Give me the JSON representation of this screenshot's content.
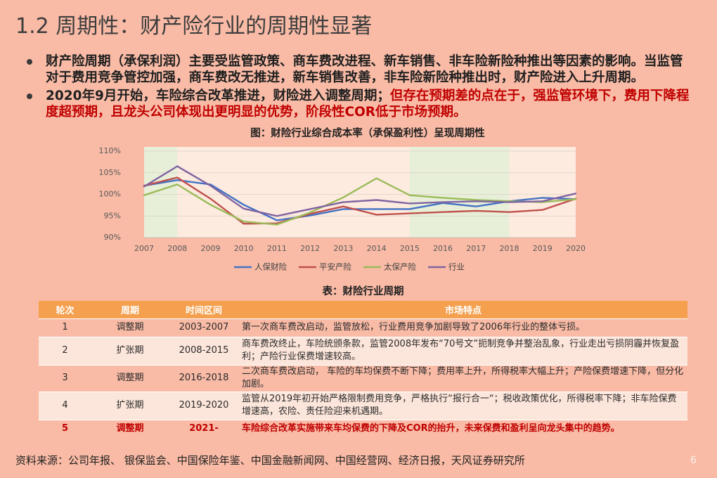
{
  "colors": {
    "page_bg": "#F9BBA6",
    "title_text": "#3D3D3D",
    "accent_red": "#C00000",
    "table_header_bg": "#F4A04E",
    "table_row_light": "#FCE5DA"
  },
  "slide": {
    "title": "1.2 周期性：财产险行业的周期性显著",
    "source": "资料来源：公司年报、 银保监会、中国保险年鉴、中国金融新闻网、中国经营网、经济日报，天风证券研究所",
    "page_number": "6"
  },
  "bullets": [
    {
      "text": "财产险周期（承保利润）主要受监管政策、商车费改进程、新车销售、非车险新险种推出等因素的影响。当监管对于费用竞争管控加强，商车费改无推进，新车销售改善，非车险新险种推出时，财产险进入上升周期。"
    },
    {
      "text": "2020年9月开始，车险综合改革推进，财险进入调整周期；",
      "emphasis_text": "但存在预期差的点在于，强监管环境下，费用下降程度超预期，且龙头公司体现出更明显的优势，阶段性COR低于市场预期。"
    }
  ],
  "chart_data": {
    "type": "line",
    "title": "图：财险行业综合成本率（承保盈利性）呈现周期性",
    "x": [
      "2007",
      "2008",
      "2009",
      "2010",
      "2011",
      "2012",
      "2013",
      "2014",
      "2015",
      "2016",
      "2017",
      "2018",
      "2019",
      "2020"
    ],
    "ylim": [
      90,
      110
    ],
    "yticks": [
      "90%",
      "95%",
      "100%",
      "105%",
      "110%"
    ],
    "grid": true,
    "legend": "bottom",
    "highlight_ranges": [
      [
        "2007",
        "2008"
      ],
      [
        "2015",
        "2018"
      ]
    ],
    "panel_color": "#FDEBDF",
    "band_color": "#E7EFD9",
    "series": [
      {
        "name": "人保财险",
        "color": "#4472C4",
        "values": [
          102.0,
          103.3,
          102.3,
          97.6,
          94.0,
          95.1,
          96.6,
          96.6,
          96.6,
          98.0,
          97.2,
          98.4,
          99.2,
          98.9
        ]
      },
      {
        "name": "平安产险",
        "color": "#C0504D",
        "values": [
          102.0,
          103.9,
          99.0,
          93.2,
          93.3,
          95.5,
          97.2,
          95.3,
          95.6,
          95.9,
          96.2,
          95.9,
          96.4,
          99.0
        ]
      },
      {
        "name": "太保产险",
        "color": "#9BBB59",
        "values": [
          99.8,
          102.3,
          97.6,
          93.7,
          93.0,
          95.8,
          99.3,
          103.7,
          99.8,
          99.2,
          98.7,
          98.4,
          98.2,
          98.9
        ]
      },
      {
        "name": "行业",
        "color": "#8064A2",
        "values": [
          101.8,
          106.5,
          102.0,
          96.7,
          95.0,
          96.6,
          98.2,
          98.7,
          97.9,
          98.2,
          98.4,
          98.2,
          98.4,
          100.2
        ]
      }
    ]
  },
  "table": {
    "title": "表：财险行业周期",
    "headers": [
      "轮次",
      "周期",
      "时间区间",
      "市场特点"
    ],
    "rows": [
      {
        "round": "1",
        "period": "调整期",
        "interval": "2003-2007",
        "features": "第一次商车费改启动，监管放松，行业费用竞争加剧导致了2006年行业的整体亏损。"
      },
      {
        "round": "2",
        "period": "扩张期",
        "interval": "2008-2015",
        "features": "商车费改终止，车险统颁条款，监管2008年发布“70号文”扼制竞争并整治乱象，行业走出亏损阴霾并恢复盈利；产险行业保费增速较高。"
      },
      {
        "round": "3",
        "period": "调整期",
        "interval": "2016-2018",
        "features": "二次商车费改启动， 车险的车均保费不断下降；费用率上升，所得税率大幅上升；产险保费增速下降，但分化加剧。"
      },
      {
        "round": "4",
        "period": "扩张期",
        "interval": "2019-2020",
        "features": "监管从2019年初开始严格限制费用竞争，严格执行“报行合一“；税收政策优化，所得税率下降；非车险保费增速高，农险、责任险迎来机遇期。"
      },
      {
        "round": "5",
        "period": "调整期",
        "interval": "2021-",
        "features": "车险综合改革实施带来车均保费的下降及COR的抬升，未来保费和盈利呈向龙头集中的趋势。"
      }
    ]
  }
}
